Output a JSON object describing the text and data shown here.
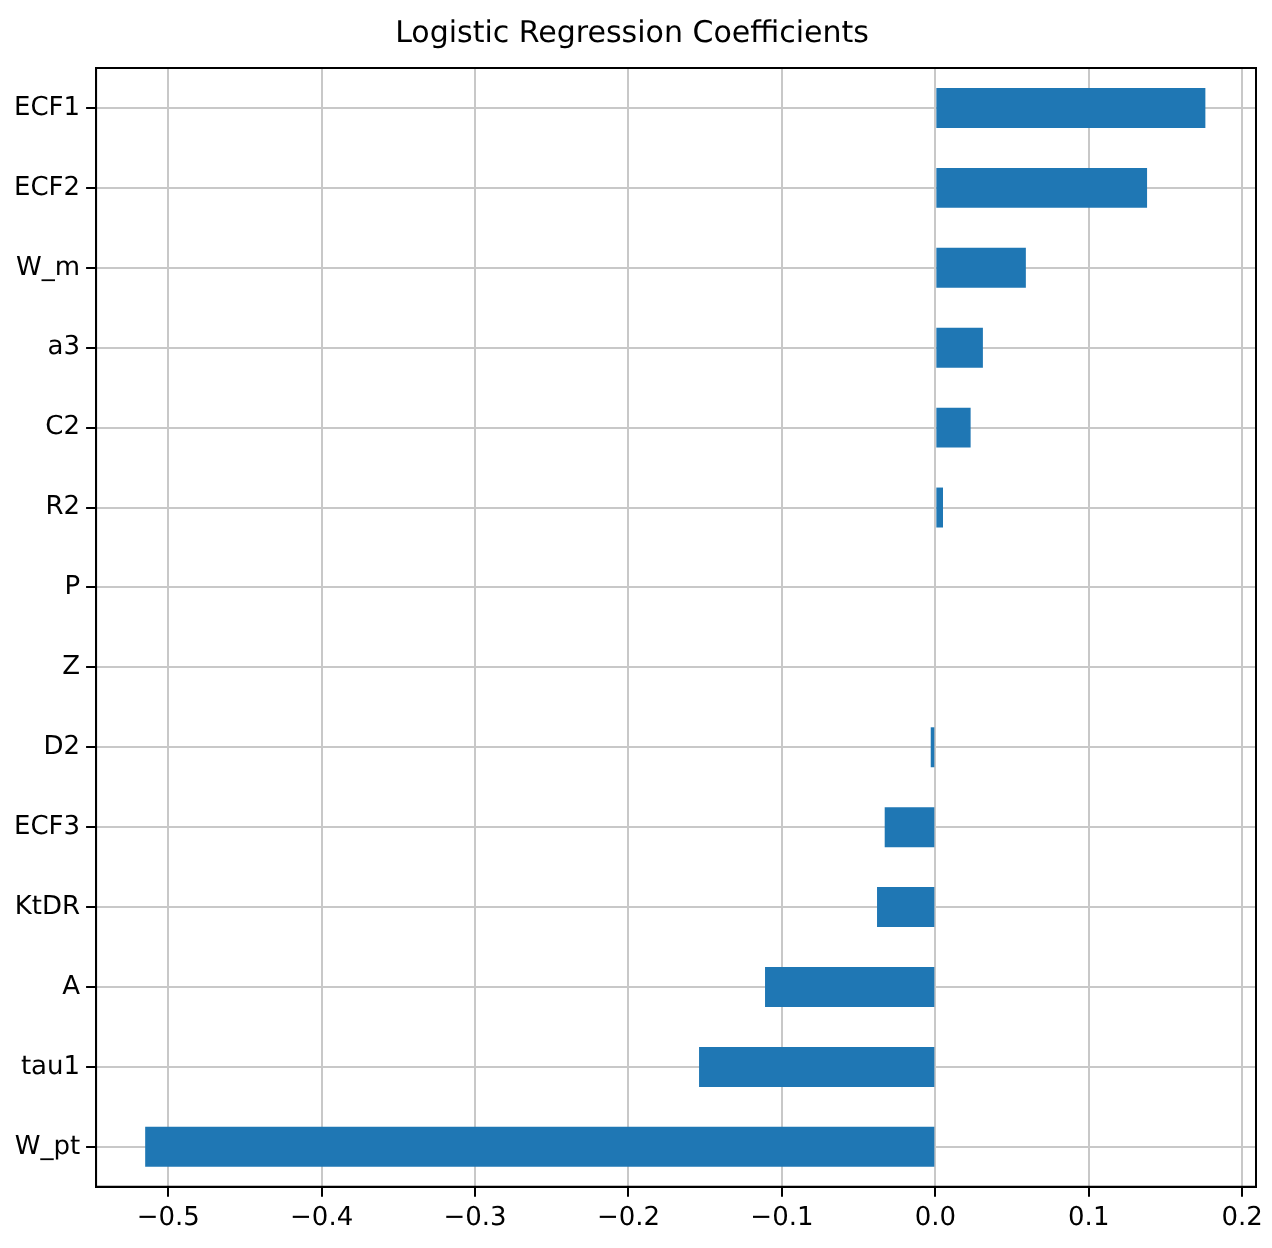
{
  "chart_data": {
    "type": "bar",
    "orientation": "horizontal",
    "title": "Logistic Regression Coefficients",
    "categories": [
      "ECF1",
      "ECF2",
      "W_m",
      "a3",
      "C2",
      "R2",
      "P",
      "Z",
      "D2",
      "ECF3",
      "KtDR",
      "A",
      "tau1",
      "W_pt"
    ],
    "values": [
      0.176,
      0.138,
      0.059,
      0.031,
      0.023,
      0.005,
      0,
      0,
      -0.003,
      -0.033,
      -0.038,
      -0.111,
      -0.154,
      -0.515
    ],
    "color": "#1f77b4",
    "xlim": [
      -0.547,
      0.209
    ],
    "xticks": [
      -0.5,
      -0.4,
      -0.3,
      -0.2,
      -0.1,
      {
        "value": 0,
        "label": "0.0"
      },
      0.1,
      0.2
    ],
    "grid": true
  }
}
